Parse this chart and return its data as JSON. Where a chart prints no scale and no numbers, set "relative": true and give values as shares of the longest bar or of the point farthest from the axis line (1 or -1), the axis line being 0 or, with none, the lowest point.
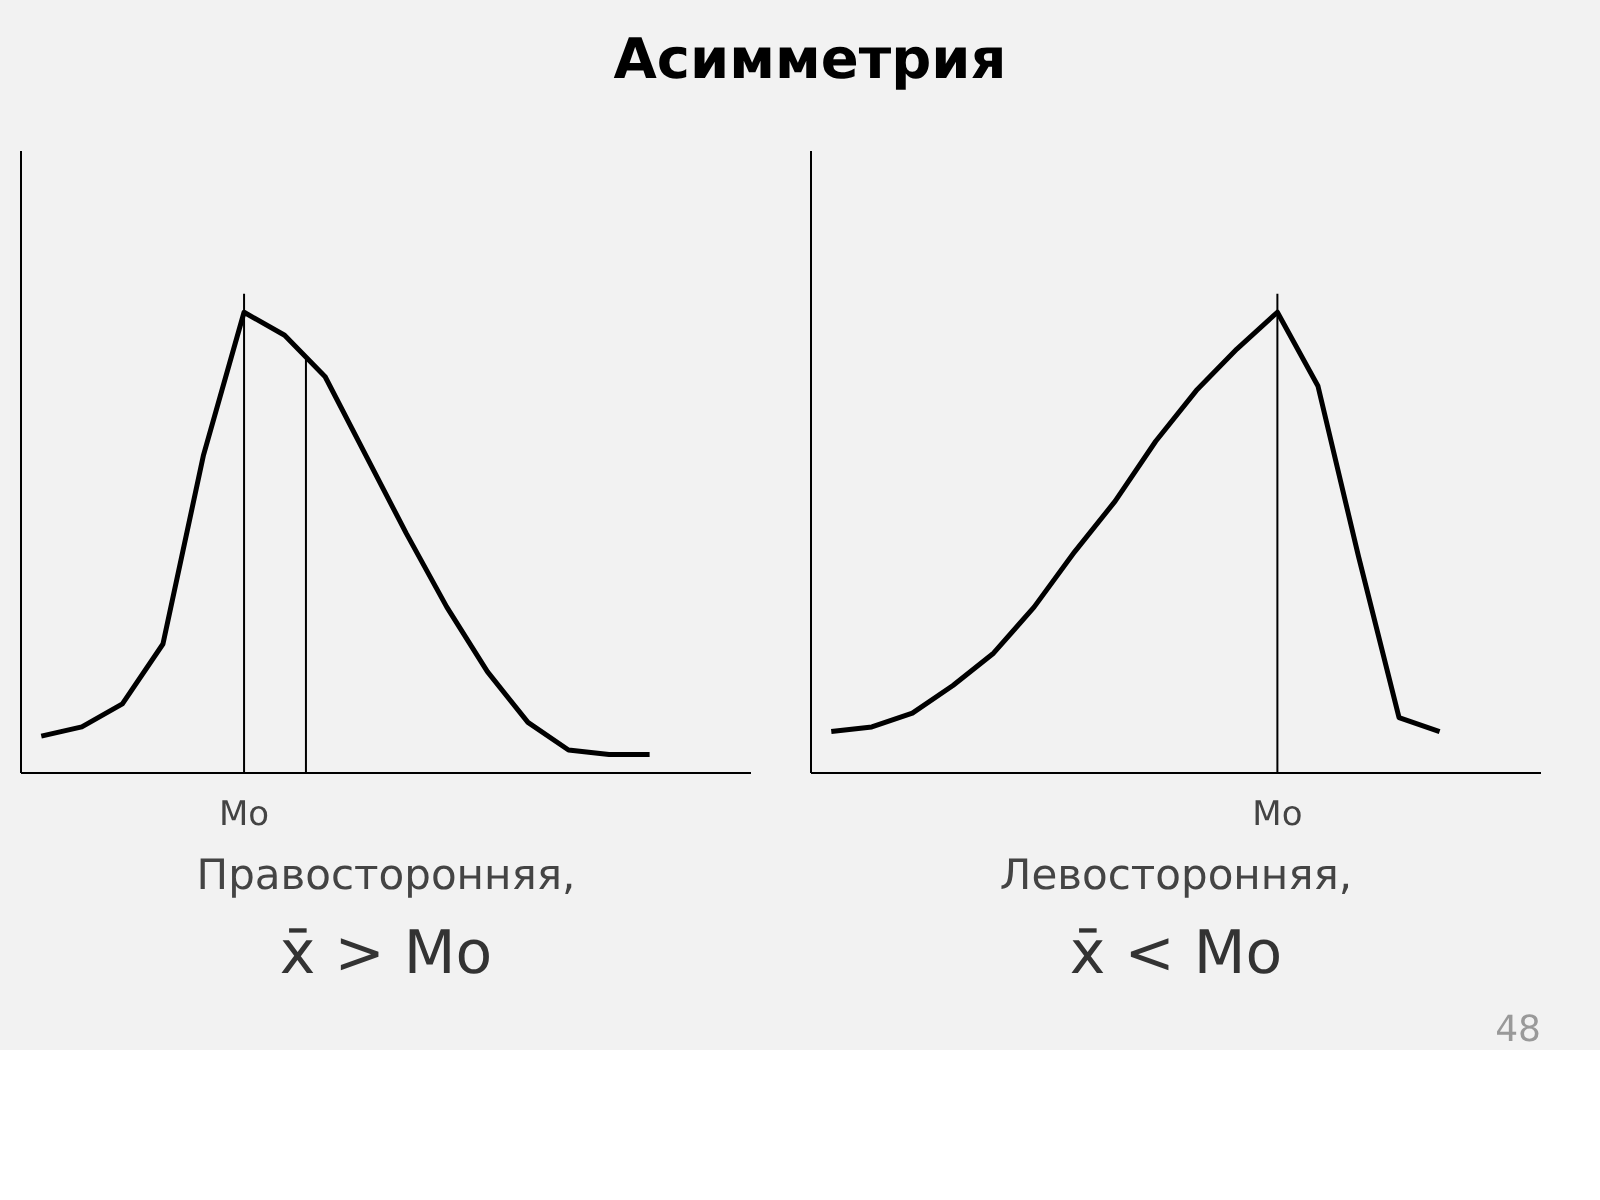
{
  "chart_data": [
    {
      "type": "line",
      "title": "Асимметрия",
      "xlabel": "Правосторонняя,",
      "annotations": [
        "Mo",
        "x̄ > Mo"
      ],
      "relative": true,
      "marker": "none",
      "line_style": "solid",
      "categories": [
        null,
        null,
        null,
        null,
        null,
        null,
        null,
        null,
        null,
        null,
        null,
        null,
        null,
        null,
        null,
        null
      ],
      "series": [
        {
          "color": "#000000",
          "values": [
            0.08,
            0.1,
            0.15,
            0.28,
            0.69,
            1.0,
            0.95,
            0.86,
            0.69,
            0.52,
            0.36,
            0.22,
            0.11,
            0.05,
            0.04,
            0.04
          ]
        }
      ]
    },
    {
      "type": "line",
      "xlabel": "Левосторонняя,",
      "annotations": [
        "Mo",
        "x̄ < Mo",
        "48"
      ],
      "relative": true,
      "marker": "none",
      "line_style": "solid",
      "categories": [
        null,
        null,
        null,
        null,
        null,
        null,
        null,
        null,
        null,
        null,
        null,
        null,
        null,
        null,
        null,
        null
      ],
      "series": [
        {
          "color": "#000000",
          "values": [
            0.09,
            0.1,
            0.13,
            0.19,
            0.26,
            0.36,
            0.48,
            0.59,
            0.72,
            0.83,
            0.92,
            1.0,
            0.84,
            0.47,
            0.12,
            0.09
          ]
        }
      ]
    }
  ]
}
